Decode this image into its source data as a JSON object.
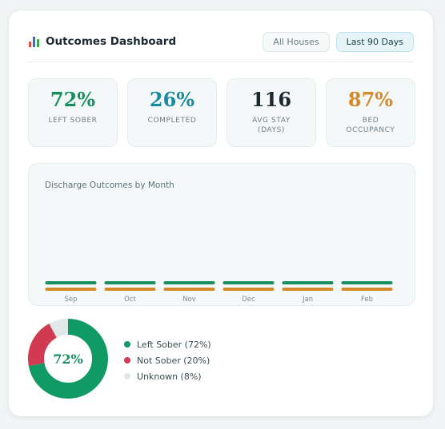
{
  "header": {
    "title": "Outcomes Dashboard",
    "icon": "bar-chart-icon",
    "filters": [
      {
        "label": "All Houses",
        "active": false
      },
      {
        "label": "Last 90 Days",
        "active": true
      }
    ]
  },
  "stats": [
    {
      "value": "72%",
      "label": "LEFT SOBER",
      "color": "#16905f"
    },
    {
      "value": "26%",
      "label": "COMPLETED",
      "color": "#1b8aa0"
    },
    {
      "value": "116",
      "label": "AVG STAY (DAYS)",
      "color": "#1b2a30"
    },
    {
      "value": "87%",
      "label": "BED OCCUPANCY",
      "color": "#d4892a"
    }
  ],
  "chart_data": {
    "type": "bar",
    "title": "Discharge Outcomes by Month",
    "categories": [
      "Sep",
      "Oct",
      "Nov",
      "Dec",
      "Jan",
      "Feb"
    ],
    "series": [
      {
        "color": "#16905f"
      },
      {
        "color": "#d4892a"
      }
    ]
  },
  "donut": {
    "center_label": "72%",
    "segments": [
      {
        "label": "Left Sober (72%)",
        "value": 72,
        "color": "#119a63"
      },
      {
        "label": "Not Sober (20%)",
        "value": 20,
        "color": "#d23a51"
      },
      {
        "label": "Unknown (8%)",
        "value": 8,
        "color": "#e1e8ea"
      }
    ]
  }
}
